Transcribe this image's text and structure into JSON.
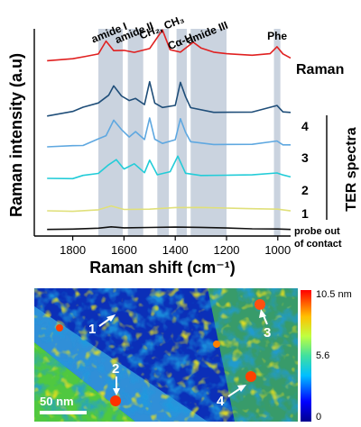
{
  "chart_data": [
    {
      "type": "line",
      "xlabel": "Raman shift (cm⁻¹)",
      "ylabel": "Raman intensity (a.u)",
      "xlim": [
        1950,
        950
      ],
      "x_reversed": true,
      "xticks": [
        1800,
        1600,
        1400,
        1200,
        1000
      ],
      "grid": false,
      "bands": [
        {
          "label": "amide I",
          "from": 1700,
          "to": 1605
        },
        {
          "label": "amide II",
          "from": 1585,
          "to": 1525
        },
        {
          "label": "CH₂, CH₃",
          "from": 1470,
          "to": 1425
        },
        {
          "label": "Cα-H",
          "from": 1395,
          "to": 1355
        },
        {
          "label": "amide III",
          "from": 1340,
          "to": 1200
        },
        {
          "label": "Phe",
          "from": 1015,
          "to": 990
        }
      ],
      "series": [
        {
          "name": "Raman",
          "color": "#e02020",
          "points": [
            [
              1900,
              0.12
            ],
            [
              1800,
              0.2
            ],
            [
              1750,
              0.35
            ],
            [
              1700,
              0.5
            ],
            [
              1670,
              1.5
            ],
            [
              1640,
              0.9
            ],
            [
              1600,
              0.75
            ],
            [
              1560,
              0.8
            ],
            [
              1500,
              0.9
            ],
            [
              1450,
              2.4
            ],
            [
              1420,
              1.0
            ],
            [
              1380,
              0.6
            ],
            [
              1330,
              1.4
            ],
            [
              1300,
              1.1
            ],
            [
              1250,
              0.8
            ],
            [
              1200,
              0.7
            ],
            [
              1100,
              0.6
            ],
            [
              1030,
              0.7
            ],
            [
              1003,
              1.1
            ],
            [
              980,
              0.7
            ],
            [
              950,
              0.3
            ]
          ]
        },
        {
          "name": "4",
          "color": "#1f4e79",
          "points": [
            [
              1900,
              0.05
            ],
            [
              1800,
              0.35
            ],
            [
              1760,
              0.9
            ],
            [
              1700,
              1.0
            ],
            [
              1660,
              1.8
            ],
            [
              1640,
              2.6
            ],
            [
              1610,
              1.7
            ],
            [
              1580,
              1.2
            ],
            [
              1555,
              1.6
            ],
            [
              1520,
              1.1
            ],
            [
              1500,
              2.8
            ],
            [
              1480,
              1.0
            ],
            [
              1450,
              0.8
            ],
            [
              1400,
              1.0
            ],
            [
              1380,
              2.7
            ],
            [
              1360,
              1.5
            ],
            [
              1340,
              0.7
            ],
            [
              1250,
              0.5
            ],
            [
              1100,
              0.45
            ],
            [
              1003,
              0.8
            ],
            [
              980,
              0.5
            ],
            [
              950,
              0.3
            ]
          ]
        },
        {
          "name": "3",
          "color": "#5fa8e0",
          "points": [
            [
              1900,
              0.1
            ],
            [
              1800,
              0.2
            ],
            [
              1760,
              0.35
            ],
            [
              1700,
              0.8
            ],
            [
              1670,
              1.2
            ],
            [
              1640,
              2.4
            ],
            [
              1610,
              1.5
            ],
            [
              1580,
              0.9
            ],
            [
              1555,
              1.5
            ],
            [
              1520,
              0.9
            ],
            [
              1500,
              2.6
            ],
            [
              1480,
              0.8
            ],
            [
              1450,
              0.6
            ],
            [
              1400,
              0.9
            ],
            [
              1380,
              2.5
            ],
            [
              1360,
              1.3
            ],
            [
              1340,
              0.5
            ],
            [
              1250,
              0.45
            ],
            [
              1100,
              0.35
            ],
            [
              1003,
              0.6
            ],
            [
              980,
              0.35
            ],
            [
              950,
              0.25
            ]
          ]
        },
        {
          "name": "2",
          "color": "#22ccd8",
          "points": [
            [
              1900,
              0.05
            ],
            [
              1800,
              0.1
            ],
            [
              1760,
              0.3
            ],
            [
              1700,
              0.6
            ],
            [
              1660,
              1.1
            ],
            [
              1630,
              1.6
            ],
            [
              1600,
              1.0
            ],
            [
              1560,
              1.2
            ],
            [
              1520,
              0.6
            ],
            [
              1500,
              1.7
            ],
            [
              1470,
              0.4
            ],
            [
              1420,
              0.6
            ],
            [
              1390,
              1.8
            ],
            [
              1360,
              0.6
            ],
            [
              1300,
              0.35
            ],
            [
              1200,
              0.3
            ],
            [
              1100,
              0.3
            ],
            [
              1003,
              0.6
            ],
            [
              980,
              0.3
            ],
            [
              950,
              0.2
            ]
          ]
        },
        {
          "name": "1",
          "color": "#e0e07a",
          "points": [
            [
              1900,
              0.02
            ],
            [
              1800,
              0.05
            ],
            [
              1700,
              0.2
            ],
            [
              1650,
              0.5
            ],
            [
              1600,
              0.2
            ],
            [
              1500,
              0.15
            ],
            [
              1400,
              0.2
            ],
            [
              1300,
              0.15
            ],
            [
              1200,
              0.1
            ],
            [
              1100,
              0.1
            ],
            [
              1000,
              0.15
            ],
            [
              950,
              0.05
            ]
          ]
        },
        {
          "name": "probe out of contact",
          "color": "#111111",
          "points": [
            [
              1900,
              0.02
            ],
            [
              1800,
              0.08
            ],
            [
              1700,
              0.15
            ],
            [
              1650,
              0.3
            ],
            [
              1600,
              0.12
            ],
            [
              1500,
              0.1
            ],
            [
              1400,
              0.12
            ],
            [
              1300,
              0.1
            ],
            [
              1200,
              0.08
            ],
            [
              1100,
              0.05
            ],
            [
              1000,
              0.08
            ],
            [
              950,
              0.03
            ]
          ]
        }
      ],
      "annotations": {
        "raman_label": "Raman",
        "ter_label": "TER spectra",
        "probe_line1": "probe out",
        "probe_line2": "of contact",
        "labels": [
          "4",
          "3",
          "2",
          "1"
        ]
      }
    },
    {
      "type": "heatmap",
      "colormap": "jet",
      "colorbar": {
        "min": 0,
        "mid": 5.6,
        "max_label": "10.5 nm",
        "mid_label": "5.6",
        "min_label": "0",
        "unit": "nm"
      },
      "scalebar_label": "50 nm",
      "points": [
        {
          "label": "1",
          "arrow": "up-right"
        },
        {
          "label": "2",
          "arrow": "down"
        },
        {
          "label": "3",
          "arrow": "up"
        },
        {
          "label": "4",
          "arrow": "up-right"
        }
      ]
    }
  ]
}
